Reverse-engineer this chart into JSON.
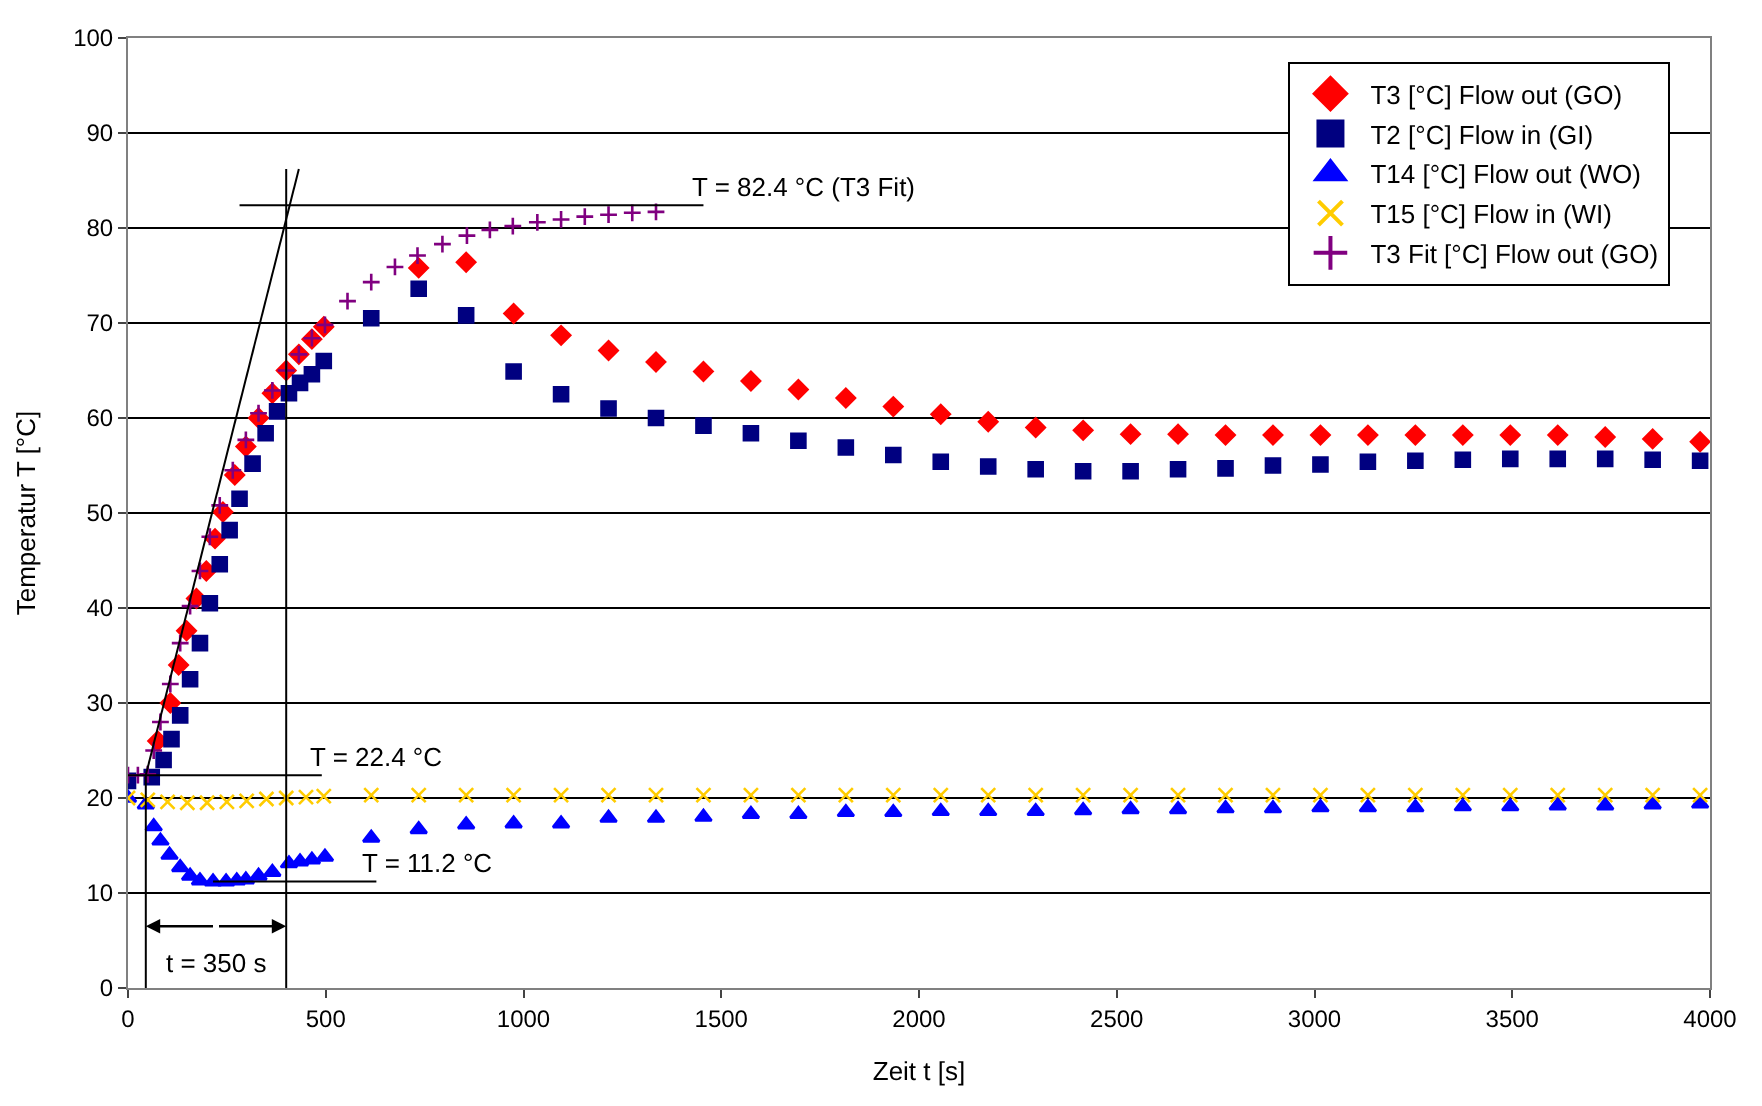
{
  "chart_data": {
    "type": "scatter",
    "xlabel": "Zeit t [s]",
    "ylabel": "Temperatur T [°C]",
    "xlim": [
      0,
      4000
    ],
    "ylim": [
      0,
      100
    ],
    "xticks": [
      0,
      500,
      1000,
      1500,
      2000,
      2500,
      3000,
      3500,
      4000
    ],
    "yticks": [
      0,
      10,
      20,
      30,
      40,
      50,
      60,
      70,
      80,
      90,
      100
    ],
    "grid": "y",
    "legend": "top right",
    "series": [
      {
        "name": "T3 [°C] Flow out (GO)",
        "color": "#ff0000",
        "marker": "diamond",
        "x": [
          75,
          107,
          128,
          148,
          173,
          198,
          220,
          240,
          270,
          298,
          330,
          365,
          400,
          432,
          465,
          495,
          615,
          735,
          855,
          975,
          1095,
          1215,
          1335,
          1455,
          1575,
          1695,
          1815,
          1935,
          2055,
          2175,
          2295,
          2415,
          2535,
          2655,
          2775,
          2895,
          3015,
          3135,
          3255,
          3375,
          3495,
          3615,
          3735,
          3855,
          3975
        ],
        "values": [
          26,
          30,
          34,
          37.6,
          41,
          43.9,
          47.3,
          50.1,
          54,
          57,
          60,
          62.6,
          65,
          66.7,
          68.3,
          69.6,
          null,
          75.8,
          76.4,
          71,
          68.7,
          67.1,
          65.9,
          64.9,
          63.9,
          63,
          62.1,
          61.2,
          60.4,
          59.6,
          59,
          58.7,
          58.3,
          58.3,
          58.2,
          58.2,
          58.2,
          58.2,
          58.2,
          58.2,
          58.2,
          58.2,
          58,
          57.8,
          57.5
        ]
      },
      {
        "name": "T2 [°C] Flow in (GI)",
        "color": "#000080",
        "marker": "square",
        "x": [
          0,
          60,
          90,
          110,
          132,
          157,
          182,
          207,
          232,
          257,
          282,
          315,
          348,
          377,
          407,
          435,
          465,
          495,
          615,
          735,
          855,
          975,
          1095,
          1215,
          1335,
          1455,
          1575,
          1695,
          1815,
          1935,
          2055,
          2175,
          2295,
          2415,
          2535,
          2655,
          2775,
          2895,
          3015,
          3135,
          3255,
          3375,
          3495,
          3615,
          3735,
          3855,
          3975
        ],
        "values": [
          21.8,
          22.2,
          24,
          26.2,
          28.7,
          32.5,
          36.3,
          40.5,
          44.6,
          48.2,
          51.5,
          55.2,
          58.4,
          60.7,
          62.6,
          63.7,
          64.6,
          66,
          70.5,
          73.6,
          70.8,
          64.9,
          62.5,
          61,
          60,
          59.2,
          58.4,
          57.6,
          56.9,
          56.1,
          55.4,
          54.9,
          54.6,
          54.4,
          54.4,
          54.6,
          54.7,
          55,
          55.1,
          55.4,
          55.5,
          55.6,
          55.7,
          55.7,
          55.7,
          55.6,
          55.5
        ]
      },
      {
        "name": "T14 [°C] Flow out (WO)",
        "color": "#0000ff",
        "marker": "triangle",
        "x": [
          0,
          45,
          65,
          82,
          105,
          132,
          157,
          182,
          215,
          248,
          275,
          298,
          330,
          365,
          407,
          435,
          465,
          498,
          615,
          735,
          855,
          975,
          1095,
          1215,
          1335,
          1455,
          1575,
          1695,
          1815,
          1935,
          2055,
          2175,
          2295,
          2415,
          2535,
          2655,
          2775,
          2895,
          3015,
          3135,
          3255,
          3375,
          3495,
          3615,
          3735,
          3855,
          3975
        ],
        "values": [
          20,
          19.3,
          17,
          15.5,
          14,
          12.7,
          11.8,
          11.3,
          11.2,
          11.2,
          11.3,
          11.4,
          11.8,
          12.2,
          13.1,
          13.3,
          13.5,
          13.8,
          15.8,
          16.7,
          17.2,
          17.3,
          17.3,
          17.9,
          17.9,
          18,
          18.3,
          18.3,
          18.5,
          18.5,
          18.6,
          18.6,
          18.6,
          18.7,
          18.8,
          18.8,
          18.9,
          18.9,
          19,
          19,
          19,
          19.1,
          19.1,
          19.2,
          19.2,
          19.3,
          19.4
        ]
      },
      {
        "name": "T15 [°C] Flow in (WI)",
        "color": "#ffcc00",
        "marker": "x",
        "x": [
          0,
          50,
          100,
          150,
          200,
          250,
          300,
          350,
          400,
          450,
          495,
          615,
          735,
          855,
          975,
          1095,
          1215,
          1335,
          1455,
          1575,
          1695,
          1815,
          1935,
          2055,
          2175,
          2295,
          2415,
          2535,
          2655,
          2775,
          2895,
          3015,
          3135,
          3255,
          3375,
          3495,
          3615,
          3735,
          3855,
          3975
        ],
        "values": [
          20,
          19.8,
          19.6,
          19.5,
          19.5,
          19.6,
          19.7,
          19.9,
          20,
          20.1,
          20.2,
          20.3,
          20.3,
          20.3,
          20.3,
          20.3,
          20.3,
          20.3,
          20.3,
          20.3,
          20.3,
          20.3,
          20.3,
          20.3,
          20.3,
          20.3,
          20.3,
          20.3,
          20.3,
          20.3,
          20.3,
          20.3,
          20.3,
          20.3,
          20.3,
          20.3,
          20.3,
          20.3,
          20.3,
          20.3
        ]
      },
      {
        "name": "T3 Fit [°C] Flow out (GO)",
        "color": "#800080",
        "marker": "cross",
        "x": [
          0,
          25,
          50,
          65,
          82,
          107,
          132,
          157,
          182,
          207,
          232,
          265,
          298,
          330,
          365,
          400,
          432,
          465,
          498,
          555,
          615,
          675,
          732,
          795,
          857,
          915,
          973,
          1035,
          1095,
          1155,
          1215,
          1275,
          1335
        ],
        "values": [
          22.4,
          22.4,
          22.5,
          25,
          28,
          32,
          36.3,
          40.2,
          43.9,
          47.5,
          50.8,
          54.5,
          57.7,
          60.5,
          62.9,
          65,
          66.7,
          68.4,
          69.8,
          72.3,
          74.3,
          75.9,
          77.1,
          78.3,
          79.2,
          79.8,
          80.2,
          80.6,
          80.9,
          81.2,
          81.4,
          81.6,
          81.7
        ]
      },
      {
        "type": "line",
        "color": "#000000",
        "x": [
          45,
          432
        ],
        "values": [
          22.4,
          86.2
        ]
      },
      {
        "type": "line",
        "color": "#000000",
        "x": [
          282,
          1455
        ],
        "values": [
          82.4,
          82.4
        ]
      },
      {
        "type": "line",
        "color": "#000000",
        "x": [
          0,
          490
        ],
        "values": [
          22.4,
          22.4
        ]
      },
      {
        "type": "line",
        "color": "#000000",
        "x": [
          215,
          628
        ],
        "values": [
          11.2,
          11.2
        ]
      },
      {
        "type": "line",
        "color": "#000000",
        "x": [
          45,
          45
        ],
        "values": [
          22.4,
          0
        ]
      },
      {
        "type": "line",
        "color": "#000000",
        "x": [
          400,
          400
        ],
        "values": [
          86.2,
          0
        ]
      }
    ],
    "annotations": [
      {
        "text": "T = 82.4 °C (T3 Fit)",
        "x": 1415,
        "y": 82.4
      },
      {
        "text": "T = 22.4 °C",
        "x": 450,
        "y": 22.4
      },
      {
        "text": "T = 11.2 °C",
        "x": 580,
        "y": 11.2
      },
      "t = 350 s"
    ]
  }
}
